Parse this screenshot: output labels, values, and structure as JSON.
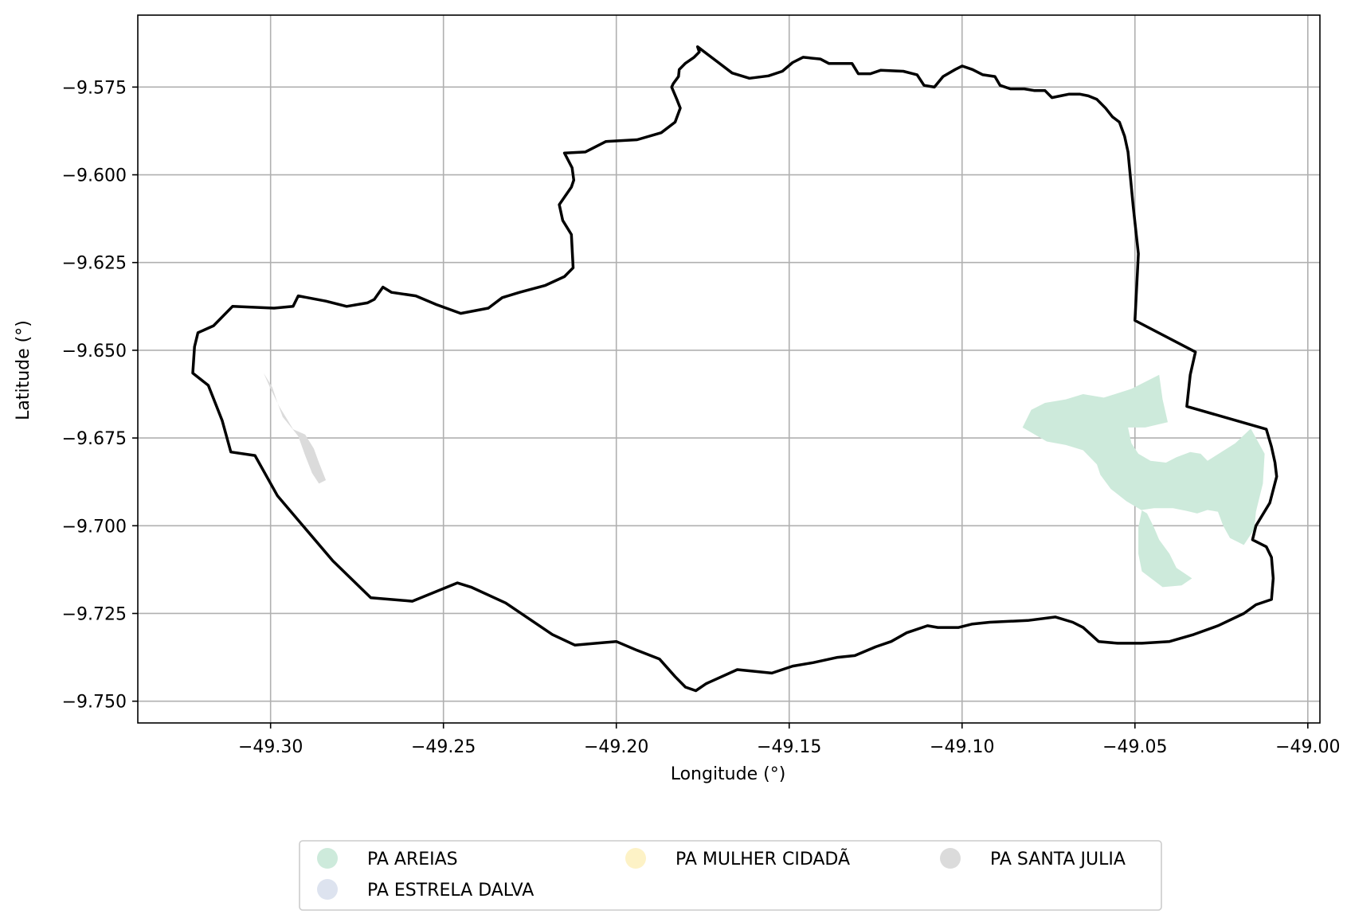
{
  "figure": {
    "xlabel": "Longitude (°)",
    "ylabel": "Latitude (°)"
  },
  "axes": {
    "xlim": [
      -49.3384,
      -48.9965
    ],
    "ylim": [
      -9.7562,
      -9.5545
    ],
    "x_ticks": [
      {
        "value": -49.3,
        "label": "−49.30"
      },
      {
        "value": -49.25,
        "label": "−49.25"
      },
      {
        "value": -49.2,
        "label": "−49.20"
      },
      {
        "value": -49.15,
        "label": "−49.15"
      },
      {
        "value": -49.1,
        "label": "−49.10"
      },
      {
        "value": -49.05,
        "label": "−49.05"
      },
      {
        "value": -49.0,
        "label": "−49.00"
      }
    ],
    "y_ticks": [
      {
        "value": -9.575,
        "label": "−9.575"
      },
      {
        "value": -9.6,
        "label": "−9.600"
      },
      {
        "value": -9.625,
        "label": "−9.625"
      },
      {
        "value": -9.65,
        "label": "−9.650"
      },
      {
        "value": -9.675,
        "label": "−9.675"
      },
      {
        "value": -9.7,
        "label": "−9.700"
      },
      {
        "value": -9.725,
        "label": "−9.725"
      },
      {
        "value": -9.75,
        "label": "−9.750"
      }
    ],
    "grid": true
  },
  "legend": {
    "placement": "bottom-center",
    "entries": [
      {
        "label": "PA AREIAS",
        "color": "#cdeadb"
      },
      {
        "label": "PA ESTRELA DALVA",
        "color": "#dde3ef"
      },
      {
        "label": "PA MULHER CIDADÃ",
        "color": "#fdf2c6"
      },
      {
        "label": "PA SANTA JULIA",
        "color": "#dbdbdb"
      }
    ]
  },
  "chart_data": {
    "type": "map",
    "boundary": {
      "color": "#000000",
      "coords": [
        [
          -49.1765,
          -9.5635
        ],
        [
          -49.1705,
          -9.568
        ],
        [
          -49.1665,
          -9.571
        ],
        [
          -49.1615,
          -9.5725
        ],
        [
          -49.156,
          -9.5718
        ],
        [
          -49.152,
          -9.5705
        ],
        [
          -49.149,
          -9.568
        ],
        [
          -49.146,
          -9.5665
        ],
        [
          -49.141,
          -9.567
        ],
        [
          -49.1385,
          -9.5683
        ],
        [
          -49.135,
          -9.5683
        ],
        [
          -49.1318,
          -9.5683
        ],
        [
          -49.13,
          -9.5712
        ],
        [
          -49.1265,
          -9.5712
        ],
        [
          -49.1235,
          -9.5702
        ],
        [
          -49.117,
          -9.5705
        ],
        [
          -49.113,
          -9.5715
        ],
        [
          -49.111,
          -9.5745
        ],
        [
          -49.108,
          -9.575
        ],
        [
          -49.1055,
          -9.572
        ],
        [
          -49.102,
          -9.57
        ],
        [
          -49.1,
          -9.569
        ],
        [
          -49.097,
          -9.57
        ],
        [
          -49.094,
          -9.5715
        ],
        [
          -49.0905,
          -9.572
        ],
        [
          -49.089,
          -9.5745
        ],
        [
          -49.086,
          -9.5755
        ],
        [
          -49.082,
          -9.5755
        ],
        [
          -49.079,
          -9.576
        ],
        [
          -49.076,
          -9.576
        ],
        [
          -49.074,
          -9.578
        ],
        [
          -49.0715,
          -9.5775
        ],
        [
          -49.069,
          -9.577
        ],
        [
          -49.066,
          -9.577
        ],
        [
          -49.0635,
          -9.5775
        ],
        [
          -49.061,
          -9.5785
        ],
        [
          -49.0585,
          -9.581
        ],
        [
          -49.0565,
          -9.5835
        ],
        [
          -49.0545,
          -9.585
        ],
        [
          -49.053,
          -9.589
        ],
        [
          -49.052,
          -9.5935
        ],
        [
          -49.0505,
          -9.609
        ],
        [
          -49.049,
          -9.6225
        ],
        [
          -49.05,
          -9.6415
        ],
        [
          -49.0325,
          -9.6505
        ],
        [
          -49.034,
          -9.657
        ],
        [
          -49.035,
          -9.666
        ],
        [
          -49.012,
          -9.6725
        ],
        [
          -49.0105,
          -9.6775
        ],
        [
          -49.0095,
          -9.682
        ],
        [
          -49.009,
          -9.686
        ],
        [
          -49.011,
          -9.6935
        ],
        [
          -49.015,
          -9.7
        ],
        [
          -49.016,
          -9.704
        ],
        [
          -49.012,
          -9.706
        ],
        [
          -49.0105,
          -9.709
        ],
        [
          -49.01,
          -9.715
        ],
        [
          -49.0105,
          -9.721
        ],
        [
          -49.015,
          -9.7225
        ],
        [
          -49.0185,
          -9.725
        ],
        [
          -49.026,
          -9.7285
        ],
        [
          -49.033,
          -9.731
        ],
        [
          -49.04,
          -9.733
        ],
        [
          -49.048,
          -9.7335
        ],
        [
          -49.055,
          -9.7335
        ],
        [
          -49.0605,
          -9.733
        ],
        [
          -49.065,
          -9.729
        ],
        [
          -49.068,
          -9.7275
        ],
        [
          -49.073,
          -9.726
        ],
        [
          -49.081,
          -9.727
        ],
        [
          -49.092,
          -9.7275
        ],
        [
          -49.097,
          -9.728
        ],
        [
          -49.101,
          -9.729
        ],
        [
          -49.107,
          -9.729
        ],
        [
          -49.11,
          -9.7285
        ],
        [
          -49.116,
          -9.7305
        ],
        [
          -49.1205,
          -9.733
        ],
        [
          -49.125,
          -9.7345
        ],
        [
          -49.131,
          -9.737
        ],
        [
          -49.136,
          -9.7375
        ],
        [
          -49.143,
          -9.739
        ],
        [
          -49.149,
          -9.74
        ],
        [
          -49.155,
          -9.742
        ],
        [
          -49.165,
          -9.741
        ],
        [
          -49.174,
          -9.745
        ],
        [
          -49.177,
          -9.747
        ],
        [
          -49.18,
          -9.746
        ],
        [
          -49.183,
          -9.743
        ],
        [
          -49.1875,
          -9.738
        ],
        [
          -49.194,
          -9.7355
        ],
        [
          -49.2,
          -9.733
        ],
        [
          -49.212,
          -9.734
        ],
        [
          -49.2185,
          -9.731
        ],
        [
          -49.232,
          -9.722
        ],
        [
          -49.242,
          -9.7175
        ],
        [
          -49.246,
          -9.7163
        ],
        [
          -49.259,
          -9.7215
        ],
        [
          -49.271,
          -9.7205
        ],
        [
          -49.282,
          -9.71
        ],
        [
          -49.298,
          -9.6915
        ],
        [
          -49.3045,
          -9.68
        ],
        [
          -49.3115,
          -9.679
        ],
        [
          -49.314,
          -9.67
        ],
        [
          -49.318,
          -9.66
        ],
        [
          -49.3225,
          -9.6565
        ],
        [
          -49.322,
          -9.649
        ],
        [
          -49.321,
          -9.645
        ],
        [
          -49.3165,
          -9.643
        ],
        [
          -49.311,
          -9.6375
        ],
        [
          -49.299,
          -9.638
        ],
        [
          -49.2935,
          -9.6375
        ],
        [
          -49.292,
          -9.6345
        ],
        [
          -49.284,
          -9.636
        ],
        [
          -49.278,
          -9.6375
        ],
        [
          -49.272,
          -9.6365
        ],
        [
          -49.27,
          -9.6355
        ],
        [
          -49.2675,
          -9.632
        ],
        [
          -49.265,
          -9.6335
        ],
        [
          -49.258,
          -9.6345
        ],
        [
          -49.252,
          -9.637
        ],
        [
          -49.245,
          -9.6395
        ],
        [
          -49.237,
          -9.638
        ],
        [
          -49.233,
          -9.635
        ],
        [
          -49.228,
          -9.6335
        ],
        [
          -49.2205,
          -9.6315
        ],
        [
          -49.215,
          -9.629
        ],
        [
          -49.2125,
          -9.6265
        ],
        [
          -49.213,
          -9.617
        ],
        [
          -49.2155,
          -9.613
        ],
        [
          -49.2165,
          -9.6085
        ],
        [
          -49.213,
          -9.6035
        ],
        [
          -49.2123,
          -9.6015
        ],
        [
          -49.2128,
          -9.598
        ],
        [
          -49.215,
          -9.5938
        ],
        [
          -49.209,
          -9.5935
        ],
        [
          -49.203,
          -9.5905
        ],
        [
          -49.194,
          -9.59
        ],
        [
          -49.187,
          -9.588
        ],
        [
          -49.183,
          -9.585
        ],
        [
          -49.1815,
          -9.581
        ],
        [
          -49.1825,
          -9.5785
        ],
        [
          -49.184,
          -9.575
        ],
        [
          -49.1835,
          -9.574
        ],
        [
          -49.182,
          -9.572
        ],
        [
          -49.1818,
          -9.57
        ],
        [
          -49.18,
          -9.5682
        ],
        [
          -49.1775,
          -9.5665
        ],
        [
          -49.176,
          -9.565
        ],
        [
          -49.1765,
          -9.5635
        ]
      ]
    },
    "areas": [
      {
        "name": "PA AREIAS",
        "color": "#cdeadb",
        "coords": [
          [
            -49.059,
            -9.6635
          ],
          [
            -49.051,
            -9.661
          ],
          [
            -49.043,
            -9.657
          ],
          [
            -49.042,
            -9.664
          ],
          [
            -49.0405,
            -9.6705
          ],
          [
            -49.047,
            -9.672
          ],
          [
            -49.052,
            -9.672
          ],
          [
            -49.051,
            -9.6765
          ],
          [
            -49.049,
            -9.6795
          ],
          [
            -49.0455,
            -9.6815
          ],
          [
            -49.041,
            -9.682
          ],
          [
            -49.038,
            -9.6805
          ],
          [
            -49.034,
            -9.679
          ],
          [
            -49.031,
            -9.6795
          ],
          [
            -49.029,
            -9.6815
          ],
          [
            -49.025,
            -9.679
          ],
          [
            -49.021,
            -9.6765
          ],
          [
            -49.0165,
            -9.6723
          ],
          [
            -49.015,
            -9.675
          ],
          [
            -49.0125,
            -9.6795
          ],
          [
            -49.013,
            -9.688
          ],
          [
            -49.015,
            -9.696
          ],
          [
            -49.0155,
            -9.701
          ],
          [
            -49.0185,
            -9.7055
          ],
          [
            -49.0225,
            -9.7035
          ],
          [
            -49.0245,
            -9.7
          ],
          [
            -49.026,
            -9.696
          ],
          [
            -49.029,
            -9.6955
          ],
          [
            -49.032,
            -9.6965
          ],
          [
            -49.035,
            -9.6958
          ],
          [
            -49.039,
            -9.695
          ],
          [
            -49.0445,
            -9.695
          ],
          [
            -49.048,
            -9.6955
          ],
          [
            -49.049,
            -9.7005
          ],
          [
            -49.049,
            -9.708
          ],
          [
            -49.048,
            -9.713
          ],
          [
            -49.042,
            -9.7175
          ],
          [
            -49.0365,
            -9.717
          ],
          [
            -49.0335,
            -9.715
          ],
          [
            -49.038,
            -9.712
          ],
          [
            -49.04,
            -9.708
          ],
          [
            -49.043,
            -9.704
          ],
          [
            -49.0445,
            -9.7005
          ],
          [
            -49.0465,
            -9.6965
          ],
          [
            -49.0525,
            -9.693
          ],
          [
            -49.057,
            -9.6895
          ],
          [
            -49.06,
            -9.6855
          ],
          [
            -49.061,
            -9.6825
          ],
          [
            -49.065,
            -9.6785
          ],
          [
            -49.07,
            -9.677
          ],
          [
            -49.0755,
            -9.676
          ],
          [
            -49.0825,
            -9.672
          ],
          [
            -49.08,
            -9.667
          ],
          [
            -49.076,
            -9.665
          ],
          [
            -49.07,
            -9.664
          ],
          [
            -49.065,
            -9.6625
          ],
          [
            -49.059,
            -9.6635
          ]
        ]
      },
      {
        "name": "PA SANTA JULIA",
        "color": "#dbdbdb",
        "coords": [
          [
            -49.302,
            -9.6565
          ],
          [
            -49.2995,
            -9.6605
          ],
          [
            -49.298,
            -9.665
          ],
          [
            -49.2965,
            -9.669
          ],
          [
            -49.294,
            -9.672
          ],
          [
            -49.292,
            -9.6745
          ],
          [
            -49.29,
            -9.68
          ],
          [
            -49.288,
            -9.685
          ],
          [
            -49.286,
            -9.688
          ],
          [
            -49.284,
            -9.687
          ],
          [
            -49.286,
            -9.682
          ],
          [
            -49.2875,
            -9.678
          ],
          [
            -49.29,
            -9.674
          ],
          [
            -49.2935,
            -9.6725
          ],
          [
            -49.295,
            -9.67
          ],
          [
            -49.2975,
            -9.666
          ],
          [
            -49.3,
            -9.661
          ],
          [
            -49.302,
            -9.6565
          ]
        ]
      }
    ]
  }
}
